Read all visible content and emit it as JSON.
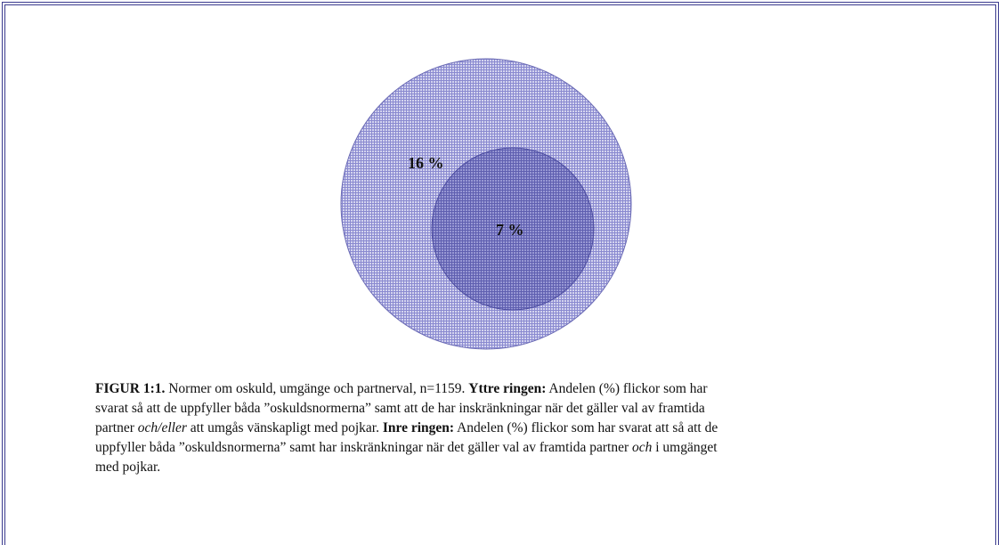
{
  "figure": {
    "outer_label": "16 %",
    "inner_label": "7 %",
    "caption": {
      "lines": [
        [
          "FIGUR 1:1.",
          " Normer om oskuld, umgänge och partnerval, n=1159. ",
          "Yttre ringen:",
          " Andelen (%) flickor som har"
        ],
        [
          "svarat så att de uppfyller båda ”oskuldsnormerna” samt att de har inskränkningar när det gäller val av framtida"
        ],
        [
          "partner ",
          "och/eller",
          " att umgås vänskapligt med pojkar. ",
          "Inre ringen:",
          " Andelen (%) flickor som har svarat att så att de"
        ],
        [
          "uppfyller båda ”oskuldsnormerna” samt har inskränkningar när det gäller val av framtida partner ",
          "och",
          " i umgänget"
        ],
        [
          "med pojkar."
        ]
      ]
    }
  }
}
